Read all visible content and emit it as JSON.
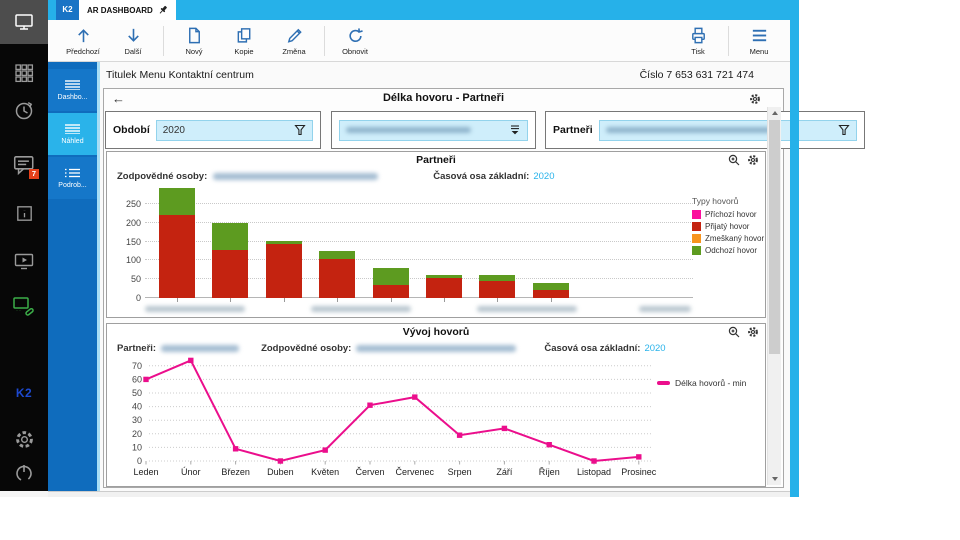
{
  "window": {
    "k2_tab": "K2",
    "doc_tab": "AR DASHBOARD",
    "header_left": "Titulek Menu Kontaktní centrum",
    "header_right": "Číslo 7 653 631 721 474"
  },
  "toolbar": {
    "items": [
      {
        "label": "Předchozí",
        "icon": "arrow-up"
      },
      {
        "label": "Další",
        "icon": "arrow-down"
      },
      {
        "label": "Nový",
        "icon": "new-document"
      },
      {
        "label": "Kopie",
        "icon": "copy"
      },
      {
        "label": "Změna",
        "icon": "pencil"
      },
      {
        "label": "Obnovit",
        "icon": "refresh"
      }
    ],
    "right_items": [
      {
        "label": "Tisk",
        "icon": "printer"
      },
      {
        "label": "Menu",
        "icon": "hamburger"
      }
    ]
  },
  "sidebar": {
    "chat_badge": "7",
    "logo": "K2",
    "nav": [
      {
        "label": "Dashbo...",
        "active": false
      },
      {
        "label": "Náhled",
        "active": true
      },
      {
        "label": "Podrob...",
        "active": false
      }
    ]
  },
  "board": {
    "title": "Délka hovoru - Partneři",
    "filters": {
      "obdobi_label": "Období",
      "obdobi_value": "2020",
      "partneri_label": "Partneři"
    }
  },
  "panels": {
    "chart1": {
      "title": "Partneři",
      "resp_label": "Zodpovědné osoby:",
      "timeline_label": "Časová osa základní:",
      "timeline_value": "2020",
      "legend_title": "Typy hovorů",
      "legend": [
        {
          "label": "Příchozí hovor",
          "color": "#fb109d"
        },
        {
          "label": "Přijatý hovor",
          "color": "#c42310"
        },
        {
          "label": "Zmeškaný hovor",
          "color": "#f7941e"
        },
        {
          "label": "Odchozí hovor",
          "color": "#5d9b20"
        }
      ]
    },
    "chart2": {
      "title": "Vývoj hovorů",
      "partner_label": "Partneři:",
      "resp_label": "Zodpovědné osoby:",
      "timeline_label": "Časová osa základní:",
      "timeline_value": "2020",
      "legend_label": "Délka hovorů - min",
      "line_color": "#eb0e8c"
    }
  },
  "chart_data": [
    {
      "type": "bar",
      "stacked": true,
      "title": "Partneři",
      "categories_blurred": true,
      "categories": [
        "",
        "",
        "",
        "",
        "",
        "",
        "",
        ""
      ],
      "series": [
        {
          "name": "Přijatý hovor",
          "color": "#c42310",
          "values": [
            222,
            127,
            143,
            104,
            35,
            52,
            45,
            22
          ]
        },
        {
          "name": "Odchozí hovor",
          "color": "#5d9b20",
          "values": [
            71,
            73,
            9,
            20,
            46,
            9,
            16,
            18
          ]
        }
      ],
      "totals": [
        293,
        200,
        152,
        124,
        81,
        61,
        61,
        40
      ],
      "yticks": [
        0,
        50,
        100,
        150,
        200,
        250
      ],
      "ylim": [
        0,
        300
      ],
      "grid": true,
      "legend_position": "right"
    },
    {
      "type": "line",
      "title": "Vývoj hovorů",
      "x": [
        "Leden",
        "Únor",
        "Březen",
        "Duben",
        "Květen",
        "Červen",
        "Červenec",
        "Srpen",
        "Září",
        "Říjen",
        "Listopad",
        "Prosinec"
      ],
      "series": [
        {
          "name": "Délka hovorů - min",
          "color": "#eb0e8c",
          "values": [
            60,
            74,
            9,
            0,
            8,
            41,
            47,
            19,
            24,
            12,
            0,
            3
          ]
        }
      ],
      "yticks": [
        0,
        10,
        20,
        30,
        40,
        50,
        60,
        70
      ],
      "ylim": [
        0,
        75
      ],
      "grid": true,
      "legend_position": "right"
    }
  ]
}
